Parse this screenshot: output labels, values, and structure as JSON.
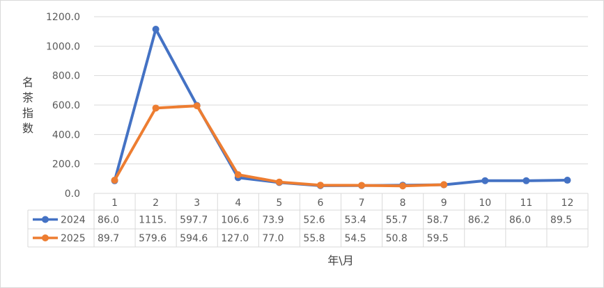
{
  "chart_data": {
    "type": "line",
    "xlabel": "年\\月",
    "ylabel": "名茶指数",
    "ylim": [
      0,
      1200
    ],
    "yticks": [
      "0.0",
      "200.0",
      "400.0",
      "600.0",
      "800.0",
      "1000.0",
      "1200.0"
    ],
    "categories": [
      "1",
      "2",
      "3",
      "4",
      "5",
      "6",
      "7",
      "8",
      "9",
      "10",
      "11",
      "12"
    ],
    "grid": true,
    "legend": "data-table",
    "series": [
      {
        "name": "2024",
        "color": "#4472C4",
        "values": [
          86.0,
          1115.0,
          597.7,
          106.6,
          73.9,
          52.6,
          53.4,
          55.7,
          58.7,
          86.2,
          86.0,
          89.5
        ],
        "labels": [
          "86.0",
          "1115.",
          "597.7",
          "106.6",
          "73.9",
          "52.6",
          "53.4",
          "55.7",
          "58.7",
          "86.2",
          "86.0",
          "89.5"
        ]
      },
      {
        "name": "2025",
        "color": "#ED7D31",
        "values": [
          89.7,
          579.6,
          594.6,
          127.0,
          77.0,
          55.8,
          54.5,
          50.8,
          59.5,
          null,
          null,
          null
        ],
        "labels": [
          "89.7",
          "579.6",
          "594.6",
          "127.0",
          "77.0",
          "55.8",
          "54.5",
          "50.8",
          "59.5",
          "",
          "",
          ""
        ]
      }
    ]
  }
}
